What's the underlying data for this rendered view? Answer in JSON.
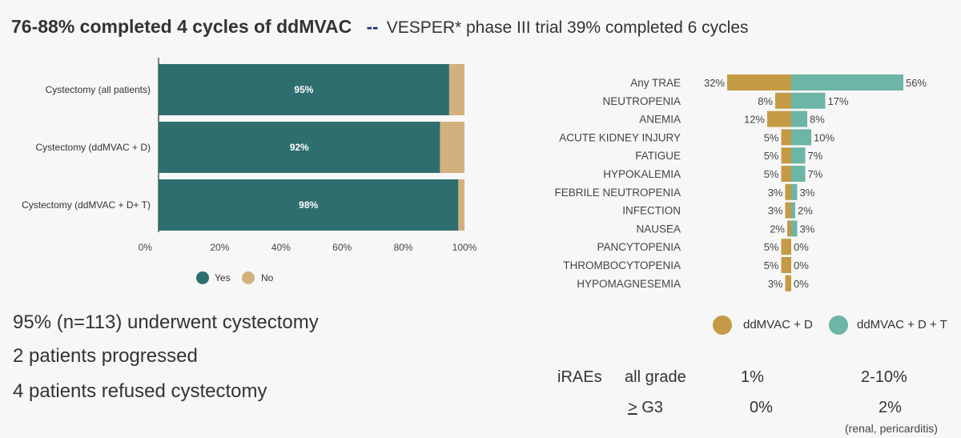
{
  "title": {
    "main": "76-88% completed 4 cycles of ddMVAC",
    "separator": "--",
    "sub": "VESPER* phase III trial 39% completed 6 cycles"
  },
  "colors": {
    "yes": "#2e6e6e",
    "no": "#d3b17f",
    "ddmvac_d": "#c59a45",
    "ddmvac_dt": "#6db5a6"
  },
  "chart_data": [
    {
      "type": "bar",
      "orientation": "horizontal",
      "stacked": true,
      "categories": [
        "Cystectomy (all patients)",
        "Cystectomy (ddMVAC + D)",
        "Cystectomy (ddMVAC + D+ T)"
      ],
      "series": [
        {
          "name": "Yes",
          "values": [
            95,
            92,
            98
          ],
          "labels": [
            "95%",
            "92%",
            "98%"
          ]
        },
        {
          "name": "No",
          "values": [
            5,
            8,
            2
          ]
        }
      ],
      "xticks": [
        "0%",
        "20%",
        "40%",
        "60%",
        "80%",
        "100%"
      ],
      "xlim": [
        0,
        100
      ],
      "legend_position": "bottom"
    },
    {
      "type": "bar",
      "orientation": "horizontal",
      "diverging": true,
      "categories": [
        "Any TRAE",
        "NEUTROPENIA",
        "ANEMIA",
        "ACUTE KIDNEY INJURY",
        "FATIGUE",
        "HYPOKALEMIA",
        "FEBRILE NEUTROPENIA",
        "INFECTION",
        "NAUSEA",
        "PANCYTOPENIA",
        "THROMBOCYTOPENIA",
        "HYPOMAGNESEMIA"
      ],
      "series": [
        {
          "name": "ddMVAC + D",
          "values": [
            32,
            8,
            12,
            5,
            5,
            5,
            3,
            3,
            2,
            5,
            5,
            3
          ],
          "labels": [
            "32%",
            "8%",
            "12%",
            "5%",
            "5%",
            "5%",
            "3%",
            "3%",
            "2%",
            "5%",
            "5%",
            "3%"
          ]
        },
        {
          "name": "ddMVAC + D + T",
          "values": [
            56,
            17,
            8,
            10,
            7,
            7,
            3,
            2,
            3,
            0,
            0,
            0
          ],
          "labels": [
            "56%",
            "17%",
            "8%",
            "10%",
            "7%",
            "7%",
            "3%",
            "2%",
            "3%",
            "0%",
            "0%",
            "0%"
          ]
        }
      ],
      "legend_position": "bottom"
    }
  ],
  "stats": [
    "95% (n=113) underwent cystectomy",
    "2 patients progressed",
    "4 patients refused cystectomy"
  ],
  "irae": {
    "label": "iRAEs",
    "row1": {
      "name": "all grade",
      "d": "1%",
      "dt": "2-10%"
    },
    "row2": {
      "prefix": ">",
      "name": " G3",
      "d": "0%",
      "dt": "2%"
    },
    "note": "(renal, pericarditis)"
  }
}
